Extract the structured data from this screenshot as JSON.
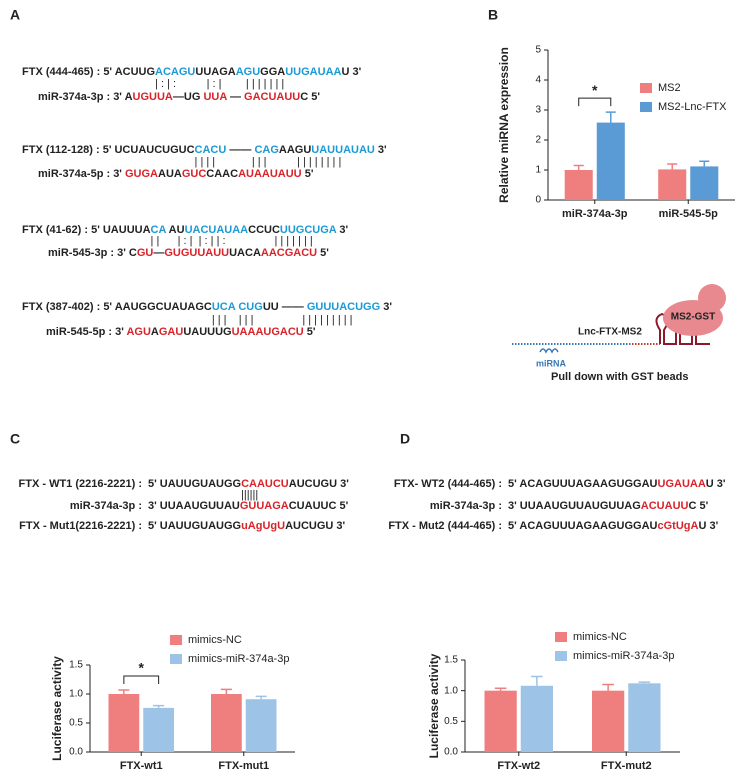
{
  "panel_labels": [
    "A",
    "B",
    "C",
    "D"
  ],
  "panel_a": [
    {
      "target": {
        "label": "FTX (444-465) :",
        "parts": [
          {
            "text": "5' ACUUG",
            "color": "#222222"
          },
          {
            "text": "ACAGU",
            "color": "#1a9ad6"
          },
          {
            "text": "UUAGA",
            "color": "#222222"
          },
          {
            "text": "AGU",
            "color": "#1a9ad6"
          },
          {
            "text": "GGA",
            "color": "#222222"
          },
          {
            "text": "UUGAUAA",
            "color": "#1a9ad6"
          },
          {
            "text": "U 3'",
            "color": "#222222"
          }
        ]
      },
      "pairs": "| : | :          | : |        | | | | | | |",
      "mirna": {
        "label": "miR-374a-3p : 3'",
        "parts": [
          {
            "text": "A",
            "color": "#222222"
          },
          {
            "text": "UGUUA",
            "color": "#d9232a"
          },
          {
            "text": "—UG ",
            "color": "#222222"
          },
          {
            "text": "UUA",
            "color": "#d9232a"
          },
          {
            "text": " — ",
            "color": "#222222"
          },
          {
            "text": "GACUAUU",
            "color": "#d9232a"
          },
          {
            "text": "C 5'",
            "color": "#222222"
          }
        ]
      }
    },
    {
      "target": {
        "label": "FTX (112-128) :",
        "parts": [
          {
            "text": "5' UCUAUCUGUC",
            "color": "#222222"
          },
          {
            "text": "CACU",
            "color": "#1a9ad6"
          },
          {
            "text": " —— ",
            "color": "#222222"
          },
          {
            "text": "CAG",
            "color": "#1a9ad6"
          },
          {
            "text": "AAGU",
            "color": "#222222"
          },
          {
            "text": "UAUUAUAU",
            "color": "#1a9ad6"
          },
          {
            "text": " 3'",
            "color": "#222222"
          }
        ]
      },
      "pairs": "| | | |            | | |          | | | | | | | |",
      "mirna": {
        "label": "miR-374a-5p : 3'",
        "parts": [
          {
            "text": "GUGA",
            "color": "#d9232a"
          },
          {
            "text": "AUA",
            "color": "#222222"
          },
          {
            "text": "GUC",
            "color": "#d9232a"
          },
          {
            "text": "CAAC",
            "color": "#222222"
          },
          {
            "text": "AUAAUAUU",
            "color": "#d9232a"
          },
          {
            "text": " 5'",
            "color": "#222222"
          }
        ]
      }
    },
    {
      "target": {
        "label": "FTX (41-62) :",
        "parts": [
          {
            "text": "5' UAUUUA",
            "color": "#222222"
          },
          {
            "text": "CA",
            "color": "#1a9ad6"
          },
          {
            "text": " AU",
            "color": "#222222"
          },
          {
            "text": "UAC",
            "color": "#1a9ad6"
          },
          {
            "text": "UAUAA",
            "color": "#1a9ad6"
          },
          {
            "text": "CCUC",
            "color": "#222222"
          },
          {
            "text": "UUGCUGA",
            "color": "#1a9ad6"
          },
          {
            "text": " 3'",
            "color": "#222222"
          }
        ]
      },
      "pairs": "| |      | : |  | : | | :                | | | | | | |",
      "mirna": {
        "label": "miR-545-3p : 3'",
        "parts": [
          {
            "text": "C",
            "color": "#222222"
          },
          {
            "text": "GU",
            "color": "#d9232a"
          },
          {
            "text": "—",
            "color": "#222222"
          },
          {
            "text": "GUGU",
            "color": "#d9232a"
          },
          {
            "text": "UAUU",
            "color": "#d9232a"
          },
          {
            "text": "UACA",
            "color": "#222222"
          },
          {
            "text": "AACGACU",
            "color": "#d9232a"
          },
          {
            "text": " 5'",
            "color": "#222222"
          }
        ]
      }
    },
    {
      "target": {
        "label": "FTX (387-402) :",
        "parts": [
          {
            "text": "5' AAUGGCUAUAGC",
            "color": "#222222"
          },
          {
            "text": "UCA",
            "color": "#1a9ad6"
          },
          {
            "text": " ",
            "color": "#222222"
          },
          {
            "text": "CUG",
            "color": "#1a9ad6"
          },
          {
            "text": "UU —— ",
            "color": "#222222"
          },
          {
            "text": "GUUUACUGG",
            "color": "#1a9ad6"
          },
          {
            "text": " 3'",
            "color": "#222222"
          }
        ]
      },
      "pairs": "| | |    | | |                | | | | | | | | |",
      "mirna": {
        "label": "miR-545-5p : 3'",
        "parts": [
          {
            "text": "AGU",
            "color": "#d9232a"
          },
          {
            "text": "A",
            "color": "#222222"
          },
          {
            "text": "GAU",
            "color": "#d9232a"
          },
          {
            "text": "UAUUUG",
            "color": "#222222"
          },
          {
            "text": "UAAAUGACU",
            "color": "#d9232a"
          },
          {
            "text": " 5'",
            "color": "#222222"
          }
        ]
      }
    }
  ],
  "panel_c": {
    "lines": [
      {
        "label": "FTX - WT1 (2216-2221) :",
        "parts": [
          {
            "text": "5' UAUUGUAUGG",
            "color": "#222222"
          },
          {
            "text": "CAAUCU",
            "color": "#d9232a"
          },
          {
            "text": "AUCUGU 3'",
            "color": "#222222"
          }
        ]
      },
      {
        "label": "miR-374a-3p :",
        "parts": [
          {
            "text": "3' UUAAUGUUAU",
            "color": "#222222"
          },
          {
            "text": "GUUAGA",
            "color": "#d9232a"
          },
          {
            "text": "CUAUUC 5'",
            "color": "#222222"
          }
        ]
      },
      {
        "label": "FTX - Mut1(2216-2221) :",
        "parts": [
          {
            "text": "5' UAUUGUAUGG",
            "color": "#222222"
          },
          {
            "text": "uAgUgU",
            "color": "#d9232a"
          },
          {
            "text": "AUCUGU 3'",
            "color": "#222222"
          }
        ]
      }
    ],
    "pairs": "||||||"
  },
  "panel_d": {
    "lines": [
      {
        "label": "FTX- WT2 (444-465) :",
        "parts": [
          {
            "text": "5' ACAGUUUAGAAGUGGAU",
            "color": "#222222"
          },
          {
            "text": "UGAUAA",
            "color": "#d9232a"
          },
          {
            "text": "U 3'",
            "color": "#222222"
          }
        ]
      },
      {
        "label": "miR-374a-3p :",
        "parts": [
          {
            "text": "3' UUAAUGUUAUGUUAG",
            "color": "#222222"
          },
          {
            "text": "ACUAUU",
            "color": "#d9232a"
          },
          {
            "text": "C 5'",
            "color": "#222222"
          }
        ]
      },
      {
        "label": "FTX - Mut2 (444-465) :",
        "parts": [
          {
            "text": "5' ACAGUUUAGAAGUGGAU",
            "color": "#222222"
          },
          {
            "text": "cGtUgA",
            "color": "#d9232a"
          },
          {
            "text": "U 3'",
            "color": "#222222"
          }
        ]
      }
    ]
  },
  "diagram": {
    "protein": "MS2-GST",
    "rna": "Lnc-FTX-MS2",
    "mirna": "miRNA",
    "caption": "Pull down with GST beads"
  },
  "chart_data": [
    {
      "type": "bar",
      "y_label": "Relative miRNA expression",
      "categories": [
        "miR-374a-3p",
        "miR-545-5p"
      ],
      "series": [
        {
          "name": "MS2",
          "color": "#ef7f7f",
          "values": [
            1.0,
            1.02
          ],
          "errors": [
            0.15,
            0.18
          ]
        },
        {
          "name": "MS2-Lnc-FTX",
          "color": "#5b9bd5",
          "values": [
            2.58,
            1.12
          ],
          "errors": [
            0.35,
            0.17
          ]
        }
      ],
      "ylim": [
        0,
        5
      ],
      "yticks": [
        0,
        1,
        2,
        3,
        4,
        5
      ],
      "annotations": [
        {
          "text": "*",
          "category": "miR-374a-3p"
        }
      ]
    },
    {
      "type": "bar",
      "y_label": "Luciferase activity",
      "categories": [
        "FTX-wt1",
        "FTX-mut1"
      ],
      "series": [
        {
          "name": "mimics-NC",
          "color": "#ef7f7f",
          "values": [
            1.0,
            1.0
          ],
          "errors": [
            0.07,
            0.08
          ]
        },
        {
          "name": "mimics-miR-374a-3p",
          "color": "#9dc3e6",
          "values": [
            0.76,
            0.91
          ],
          "errors": [
            0.04,
            0.05
          ]
        }
      ],
      "ylim": [
        0,
        1.5
      ],
      "yticks": [
        {
          "value": 0,
          "label": "0.0"
        },
        {
          "value": 0.5,
          "label": "0.5"
        },
        {
          "value": 1,
          "label": "1.0"
        },
        {
          "value": 1.5,
          "label": "1.5"
        }
      ],
      "annotations": [
        {
          "text": "*",
          "category": "FTX-wt1"
        }
      ]
    },
    {
      "type": "bar",
      "y_label": "Luciferase activity",
      "categories": [
        "FTX-wt2",
        "FTX-mut2"
      ],
      "series": [
        {
          "name": "mimics-NC",
          "color": "#ef7f7f",
          "values": [
            1.0,
            1.0
          ],
          "errors": [
            0.04,
            0.1
          ]
        },
        {
          "name": "mimics-miR-374a-3p",
          "color": "#9dc3e6",
          "values": [
            1.08,
            1.12
          ],
          "errors": [
            0.15,
            0.02
          ]
        }
      ],
      "ylim": [
        0,
        1.5
      ],
      "yticks": [
        {
          "value": 0,
          "label": "0.0"
        },
        {
          "value": 0.5,
          "label": "0.5"
        },
        {
          "value": 1,
          "label": "1.0"
        },
        {
          "value": 1.5,
          "label": "1.5"
        }
      ]
    }
  ]
}
